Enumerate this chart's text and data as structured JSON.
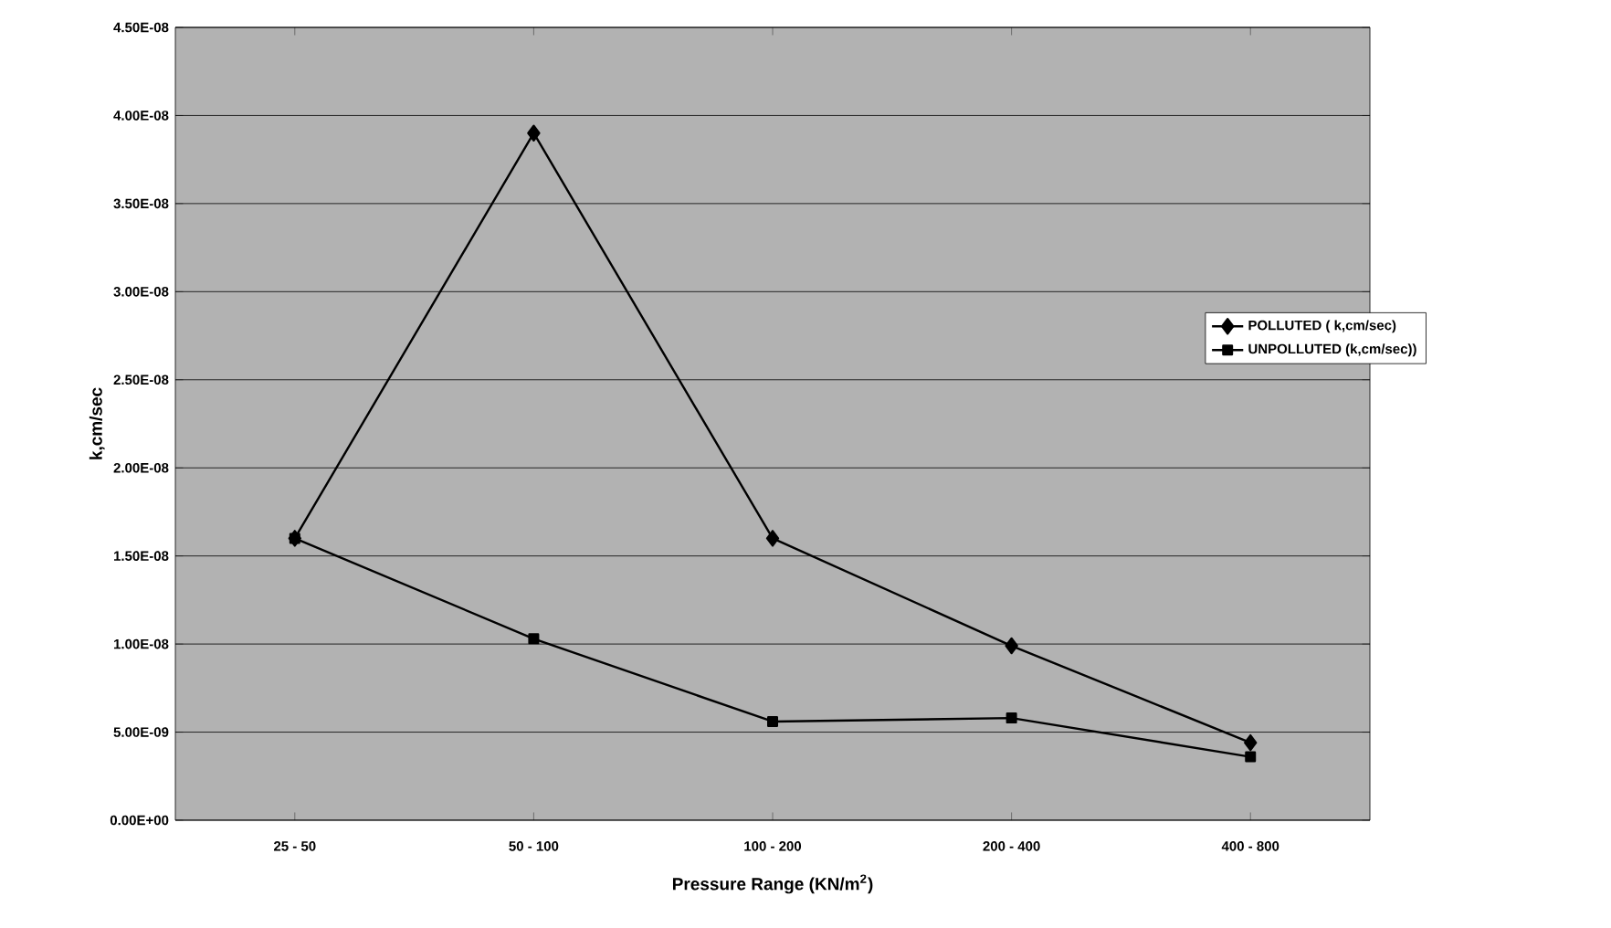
{
  "chart_data": {
    "type": "line",
    "xlabel": "Pressure Range (KN/m$^{2}$)",
    "ylabel": "k,cm/sec",
    "categories": [
      "25 - 50",
      "50 - 100",
      "100 - 200",
      "200 - 400",
      "400 - 800"
    ],
    "series": [
      {
        "name": "POLLUTED ( k,cm/sec)",
        "color": "#000000",
        "marker": "diamond",
        "values": [
          1.6e-08,
          3.9e-08,
          1.6e-08,
          9.9e-09,
          4.4e-09
        ]
      },
      {
        "name": "UNPOLLUTED (k,cm/sec))",
        "color": "#000000",
        "marker": "square",
        "values": [
          1.6e-08,
          1.03e-08,
          5.6e-09,
          5.8e-09,
          3.6e-09
        ]
      }
    ],
    "ylim": [
      0,
      4.5e-08
    ],
    "yticks": [
      {
        "value": 0,
        "label": "0.00E+00"
      },
      {
        "value": 5e-09,
        "label": "5.00E-09"
      },
      {
        "value": 1e-08,
        "label": "1.00E-08"
      },
      {
        "value": 1.5e-08,
        "label": "1.50E-08"
      },
      {
        "value": 2e-08,
        "label": "2.00E-08"
      },
      {
        "value": 2.5e-08,
        "label": "2.50E-08"
      },
      {
        "value": 3e-08,
        "label": "3.00E-08"
      },
      {
        "value": 3.5e-08,
        "label": "3.50E-08"
      },
      {
        "value": 4e-08,
        "label": "4.00E-08"
      },
      {
        "value": 4.5e-08,
        "label": "4.50E-08"
      }
    ],
    "grid": "y",
    "legend": "right",
    "line_style": "solid"
  }
}
